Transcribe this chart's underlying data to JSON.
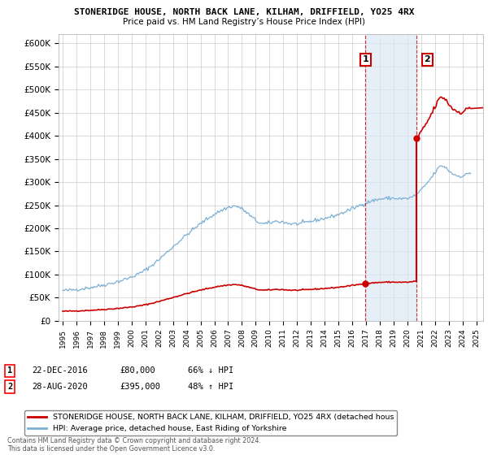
{
  "title": "STONERIDGE HOUSE, NORTH BACK LANE, KILHAM, DRIFFIELD, YO25 4RX",
  "subtitle": "Price paid vs. HM Land Registry’s House Price Index (HPI)",
  "hpi_color": "#7bafd4",
  "hpi_fill_color": "#dce9f5",
  "price_color": "#cc0000",
  "background_color": "#ffffff",
  "grid_color": "#cccccc",
  "ylim": [
    0,
    620000
  ],
  "yticks": [
    0,
    50000,
    100000,
    150000,
    200000,
    250000,
    300000,
    350000,
    400000,
    450000,
    500000,
    550000,
    600000
  ],
  "ytick_labels": [
    "£0",
    "£50K",
    "£100K",
    "£150K",
    "£200K",
    "£250K",
    "£300K",
    "£350K",
    "£400K",
    "£450K",
    "£500K",
    "£550K",
    "£600K"
  ],
  "xlim_start": 1994.7,
  "xlim_end": 2025.5,
  "sale1_x": 2016.97,
  "sale1_y": 80000,
  "sale2_x": 2020.65,
  "sale2_y": 395000,
  "legend_red_label": "STONERIDGE HOUSE, NORTH BACK LANE, KILHAM, DRIFFIELD, YO25 4RX (detached hous",
  "legend_blue_label": "HPI: Average price, detached house, East Riding of Yorkshire",
  "footnote": "Contains HM Land Registry data © Crown copyright and database right 2024.\nThis data is licensed under the Open Government Licence v3.0."
}
